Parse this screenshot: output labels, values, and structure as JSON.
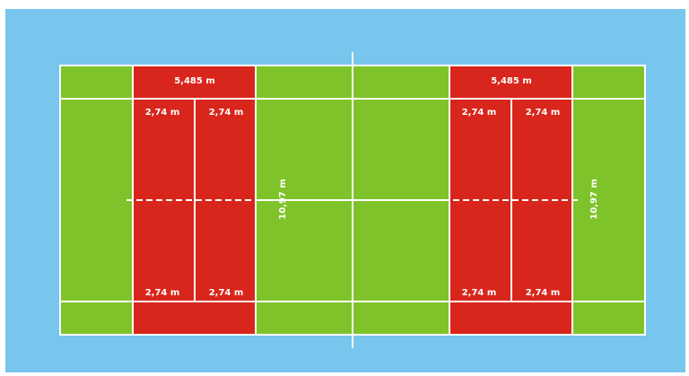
{
  "colors": {
    "surround": "#78c5ee",
    "court": "#7fc32a",
    "zone": "#d9261c",
    "lines": "#ffffff"
  },
  "labels": {
    "left": {
      "zone_width": "5,485 m",
      "sub_top_1": "2,74 m",
      "sub_top_2": "2,74 m",
      "sub_bottom_1": "2,74 m",
      "sub_bottom_2": "2,74 m",
      "court_width": "10,97 m"
    },
    "right": {
      "zone_width": "5,485 m",
      "sub_top_1": "2,74 m",
      "sub_top_2": "2,74 m",
      "sub_bottom_1": "2,74 m",
      "sub_bottom_2": "2,74 m",
      "court_width": "10,97 m"
    }
  }
}
